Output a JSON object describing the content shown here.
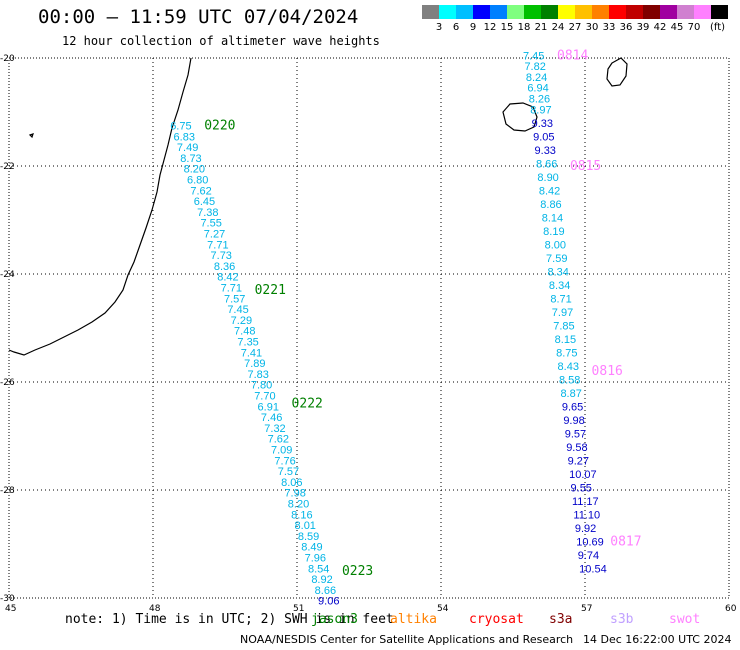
{
  "header": {
    "title": "00:00 — 11:59 UTC 07/04/2024",
    "subtitle": "12 hour collection of altimeter wave heights"
  },
  "legend": {
    "colors": [
      "#808080",
      "#00ffff",
      "#00bfff",
      "#0000ff",
      "#0080ff",
      "#7fff7f",
      "#00c000",
      "#008000",
      "#ffff00",
      "#ffc000",
      "#ff8000",
      "#ff0000",
      "#c00000",
      "#800000",
      "#a000a0",
      "#d080d0",
      "#ff80ff",
      "#000000"
    ],
    "ticks": [
      "3",
      "6",
      "9",
      "12",
      "15",
      "18",
      "21",
      "24",
      "27",
      "30",
      "33",
      "36",
      "39",
      "42",
      "45",
      "70"
    ],
    "unit": "(ft)"
  },
  "axes": {
    "lon_labels": [
      "45",
      "48",
      "51",
      "54",
      "57",
      "60"
    ],
    "lat_labels": [
      "-20",
      "-22",
      "-24",
      "-26",
      "-28",
      "-30"
    ]
  },
  "tracks": {
    "west": {
      "times": [
        {
          "label": "0220",
          "lat": -21.25,
          "color": "#008000"
        },
        {
          "label": "0221",
          "lat": -24.3,
          "color": "#008000"
        },
        {
          "label": "0222",
          "lat": -26.4,
          "color": "#008000"
        },
        {
          "label": "0223",
          "lat": -29.5,
          "color": "#008000"
        }
      ],
      "points": [
        {
          "lat": -21.25,
          "lon": 48.65,
          "value": "6.75"
        },
        {
          "lat": -21.45,
          "lon": 48.72,
          "value": "6.83"
        },
        {
          "lat": -21.65,
          "lon": 48.79,
          "value": "7.49"
        },
        {
          "lat": -21.85,
          "lon": 48.86,
          "value": "8.73"
        },
        {
          "lat": -22.05,
          "lon": 48.93,
          "value": "8.20"
        },
        {
          "lat": -22.25,
          "lon": 49.0,
          "value": "6.80"
        },
        {
          "lat": -22.45,
          "lon": 49.07,
          "value": "7.62"
        },
        {
          "lat": -22.65,
          "lon": 49.14,
          "value": "6.45"
        },
        {
          "lat": -22.85,
          "lon": 49.21,
          "value": "7.38"
        },
        {
          "lat": -23.05,
          "lon": 49.28,
          "value": "7.55"
        },
        {
          "lat": -23.25,
          "lon": 49.35,
          "value": "7.27"
        },
        {
          "lat": -23.45,
          "lon": 49.42,
          "value": "7.71"
        },
        {
          "lat": -23.65,
          "lon": 49.49,
          "value": "7.73"
        },
        {
          "lat": -23.85,
          "lon": 49.56,
          "value": "8.36"
        },
        {
          "lat": -24.05,
          "lon": 49.63,
          "value": "8.42"
        },
        {
          "lat": -24.25,
          "lon": 49.7,
          "value": "7.71"
        },
        {
          "lat": -24.45,
          "lon": 49.77,
          "value": "7.57"
        },
        {
          "lat": -24.65,
          "lon": 49.84,
          "value": "7.45"
        },
        {
          "lat": -24.85,
          "lon": 49.91,
          "value": "7.29"
        },
        {
          "lat": -25.05,
          "lon": 49.98,
          "value": "7.48"
        },
        {
          "lat": -25.25,
          "lon": 50.05,
          "value": "7.35"
        },
        {
          "lat": -25.45,
          "lon": 50.12,
          "value": "7.41"
        },
        {
          "lat": -25.65,
          "lon": 50.19,
          "value": "7.89"
        },
        {
          "lat": -25.85,
          "lon": 50.26,
          "value": "7.83"
        },
        {
          "lat": -26.05,
          "lon": 50.33,
          "value": "7.80"
        },
        {
          "lat": -26.25,
          "lon": 50.4,
          "value": "7.70"
        },
        {
          "lat": -26.45,
          "lon": 50.47,
          "value": "6.91"
        },
        {
          "lat": -26.65,
          "lon": 50.54,
          "value": "7.46"
        },
        {
          "lat": -26.85,
          "lon": 50.61,
          "value": "7.32"
        },
        {
          "lat": -27.05,
          "lon": 50.68,
          "value": "7.62"
        },
        {
          "lat": -27.25,
          "lon": 50.75,
          "value": "7.09"
        },
        {
          "lat": -27.45,
          "lon": 50.82,
          "value": "7.76"
        },
        {
          "lat": -27.65,
          "lon": 50.89,
          "value": "7.57"
        },
        {
          "lat": -27.85,
          "lon": 50.96,
          "value": "8.06"
        },
        {
          "lat": -28.05,
          "lon": 51.03,
          "value": "7.98"
        },
        {
          "lat": -28.25,
          "lon": 51.1,
          "value": "8.20"
        },
        {
          "lat": -28.45,
          "lon": 51.17,
          "value": "8.16"
        },
        {
          "lat": -28.65,
          "lon": 51.24,
          "value": "8.01"
        },
        {
          "lat": -28.85,
          "lon": 51.31,
          "value": "8.59"
        },
        {
          "lat": -29.05,
          "lon": 51.38,
          "value": "8.49"
        },
        {
          "lat": -29.25,
          "lon": 51.45,
          "value": "7.96"
        },
        {
          "lat": -29.45,
          "lon": 51.52,
          "value": "8.54"
        },
        {
          "lat": -29.65,
          "lon": 51.59,
          "value": "8.92"
        },
        {
          "lat": -29.85,
          "lon": 51.66,
          "value": "8.66"
        },
        {
          "lat": -30.05,
          "lon": 51.73,
          "value": "9.06"
        }
      ]
    },
    "east": {
      "times": [
        {
          "label": "0814",
          "lat": -19.95,
          "color": "#ff80ff"
        },
        {
          "label": "0815",
          "lat": -22.0,
          "color": "#ff80ff"
        },
        {
          "label": "0816",
          "lat": -25.8,
          "color": "#ff80ff"
        },
        {
          "label": "0817",
          "lat": -28.95,
          "color": "#ff80ff"
        }
      ],
      "points": [
        {
          "lat": -19.95,
          "lon": 56.0,
          "value": "7.45"
        },
        {
          "lat": -20.15,
          "lon": 56.03,
          "value": "7.82"
        },
        {
          "lat": -20.35,
          "lon": 56.06,
          "value": "8.24"
        },
        {
          "lat": -20.55,
          "lon": 56.09,
          "value": "6.94"
        },
        {
          "lat": -20.75,
          "lon": 56.12,
          "value": "8.26"
        },
        {
          "lat": -20.95,
          "lon": 56.15,
          "value": "8.97"
        },
        {
          "lat": -21.2,
          "lon": 56.18,
          "value": "9.33"
        },
        {
          "lat": -21.45,
          "lon": 56.21,
          "value": "9.05"
        },
        {
          "lat": -21.7,
          "lon": 56.24,
          "value": "9.33"
        },
        {
          "lat": -21.95,
          "lon": 56.27,
          "value": "8.66"
        },
        {
          "lat": -22.2,
          "lon": 56.3,
          "value": "8.90"
        },
        {
          "lat": -22.45,
          "lon": 56.33,
          "value": "8.42"
        },
        {
          "lat": -22.7,
          "lon": 56.36,
          "value": "8.86"
        },
        {
          "lat": -22.95,
          "lon": 56.39,
          "value": "8.14"
        },
        {
          "lat": -23.2,
          "lon": 56.42,
          "value": "8.19"
        },
        {
          "lat": -23.45,
          "lon": 56.45,
          "value": "8.00"
        },
        {
          "lat": -23.7,
          "lon": 56.48,
          "value": "7.59"
        },
        {
          "lat": -23.95,
          "lon": 56.51,
          "value": "8.34"
        },
        {
          "lat": -24.2,
          "lon": 56.54,
          "value": "8.34"
        },
        {
          "lat": -24.45,
          "lon": 56.57,
          "value": "8.71"
        },
        {
          "lat": -24.7,
          "lon": 56.6,
          "value": "7.97"
        },
        {
          "lat": -24.95,
          "lon": 56.63,
          "value": "7.85"
        },
        {
          "lat": -25.2,
          "lon": 56.66,
          "value": "8.15"
        },
        {
          "lat": -25.45,
          "lon": 56.69,
          "value": "8.75"
        },
        {
          "lat": -25.7,
          "lon": 56.72,
          "value": "8.43"
        },
        {
          "lat": -25.95,
          "lon": 56.75,
          "value": "8.58"
        },
        {
          "lat": -26.2,
          "lon": 56.78,
          "value": "8.87"
        },
        {
          "lat": -26.45,
          "lon": 56.81,
          "value": "9.65"
        },
        {
          "lat": -26.7,
          "lon": 56.84,
          "value": "9.98"
        },
        {
          "lat": -26.95,
          "lon": 56.87,
          "value": "9.57"
        },
        {
          "lat": -27.2,
          "lon": 56.9,
          "value": "9.58"
        },
        {
          "lat": -27.45,
          "lon": 56.93,
          "value": "9.27"
        },
        {
          "lat": -27.7,
          "lon": 56.96,
          "value": "10.07"
        },
        {
          "lat": -27.95,
          "lon": 56.99,
          "value": "9.55"
        },
        {
          "lat": -28.2,
          "lon": 57.02,
          "value": "11.17"
        },
        {
          "lat": -28.45,
          "lon": 57.05,
          "value": "11.10"
        },
        {
          "lat": -28.7,
          "lon": 57.08,
          "value": "9.92"
        },
        {
          "lat": -28.95,
          "lon": 57.11,
          "value": "10.69"
        },
        {
          "lat": -29.2,
          "lon": 57.14,
          "value": "9.74"
        },
        {
          "lat": -29.45,
          "lon": 57.17,
          "value": "10.54"
        }
      ]
    }
  },
  "footer": {
    "note": "note: 1) Time is in UTC; 2) SWH is in feet",
    "missions": [
      {
        "name": "jason3",
        "color": "#008000"
      },
      {
        "name": "altika",
        "color": "#ff8000"
      },
      {
        "name": "cryosat",
        "color": "#ff0000"
      },
      {
        "name": "s3a",
        "color": "#800000"
      },
      {
        "name": "s3b",
        "color": "#c0a0ff"
      },
      {
        "name": "swot",
        "color": "#ff80ff"
      }
    ],
    "credit": "NOAA/NESDIS Center for Satellite Applications and Research",
    "stamp": "14 Dec 16:22:00 UTC 2024"
  }
}
